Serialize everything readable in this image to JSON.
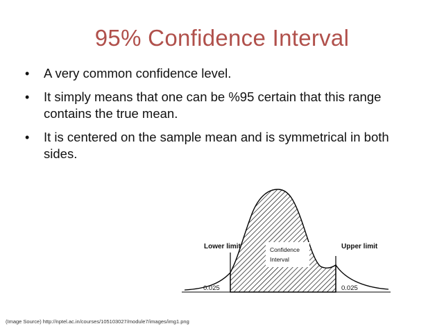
{
  "slide": {
    "title": "95% Confidence Interval",
    "bullets": [
      "A very common confidence level.",
      "It simply means that one can be %95 certain that this range contains the true mean.",
      "It is centered on the sample mean and is symmetrical in both sides."
    ],
    "source": "(Image Source) http://nptel.ac.in/courses/105103027/module7/images/img1.png"
  },
  "figure": {
    "lower_limit_label": "Lower limit",
    "upper_limit_label": "Upper limit",
    "center_label_line1": "Confidence",
    "center_label_line2": "Interval",
    "left_tail_value": "0.025",
    "right_tail_value": "0.025"
  },
  "colors": {
    "title": "#b0504b",
    "text": "#111111"
  }
}
